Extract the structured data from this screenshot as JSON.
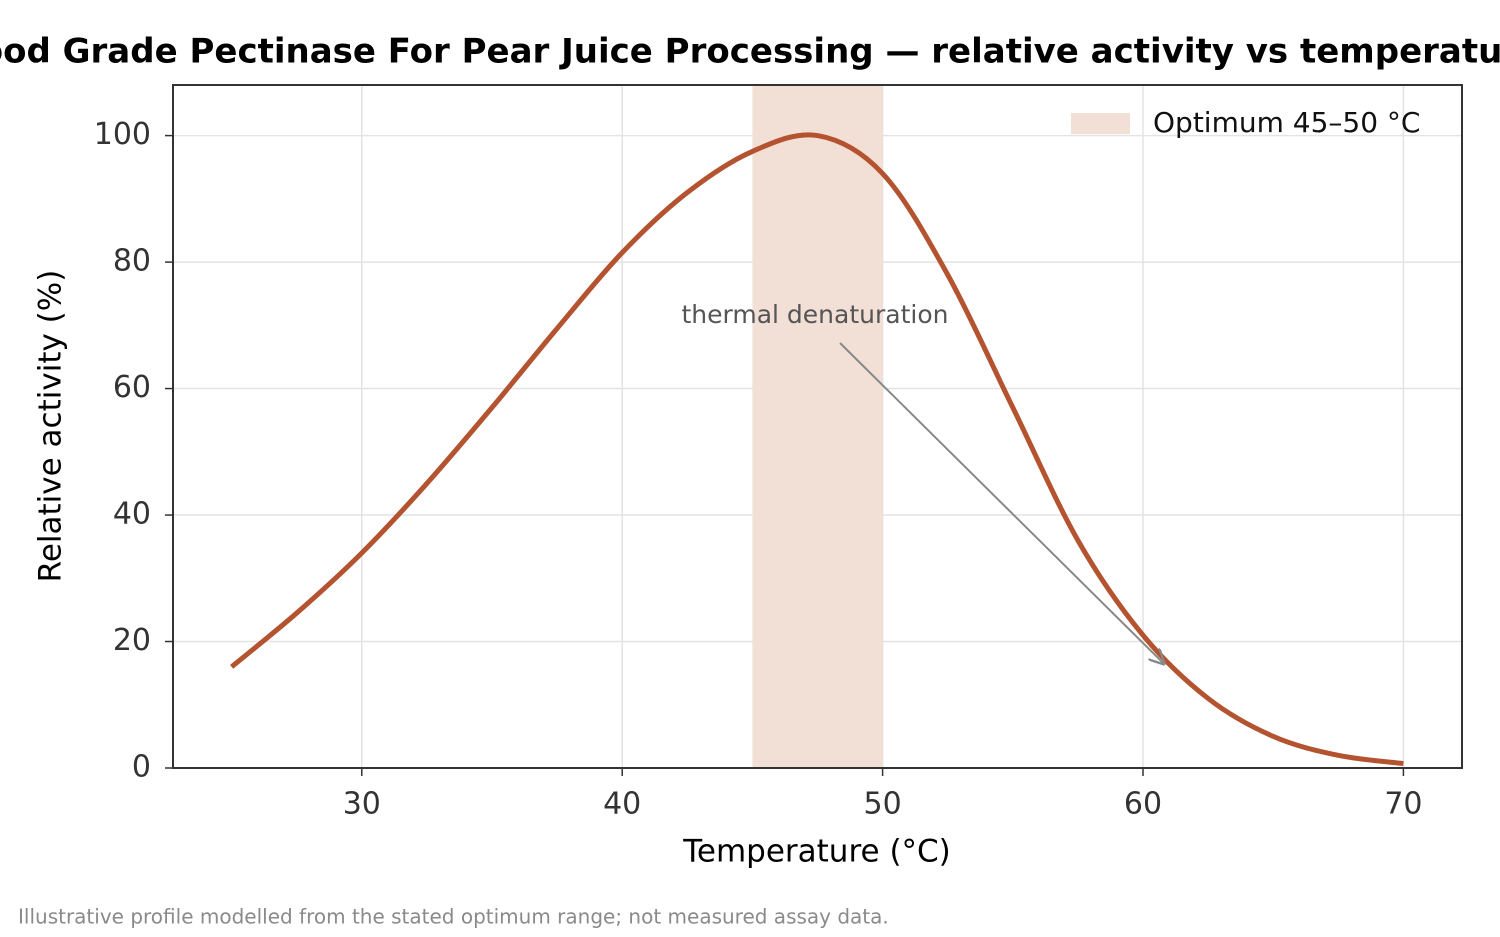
{
  "chart_data": {
    "type": "line",
    "title": "Food Grade Pectinase For Pear Juice Processing — relative activity vs temperature",
    "x_label": "Temperature (°C)",
    "y_label": "Relative activity (%)",
    "x": [
      25,
      27.5,
      30,
      32.5,
      35,
      37.5,
      40,
      42.5,
      45,
      47.5,
      50,
      52.5,
      55,
      57.5,
      60,
      62.5,
      65,
      67.5,
      70
    ],
    "series": [
      {
        "name": "Relative activity",
        "color": "#b4532f",
        "values": [
          16,
          24.5,
          34,
          45,
          57,
          69.5,
          81.5,
          91,
          97.5,
          100,
          94,
          78,
          57,
          36,
          21,
          11,
          5,
          2,
          0.7
        ]
      }
    ],
    "band": {
      "name": "Optimum 45–50 °C",
      "from": 45,
      "to": 50,
      "color": "#f2dfd6"
    },
    "annotation": {
      "text": "thermal denaturation",
      "x": 60.8,
      "y": 16.5
    },
    "xlim": [
      22.75,
      72.25
    ],
    "ylim": [
      0,
      108
    ],
    "xticks": [
      30,
      40,
      50,
      60,
      70
    ],
    "yticks": [
      0,
      20,
      40,
      60,
      80,
      100
    ],
    "grid": true,
    "legend": "upper right",
    "note": "Illustrative profile modelled from the stated optimum range; not measured assay data."
  }
}
